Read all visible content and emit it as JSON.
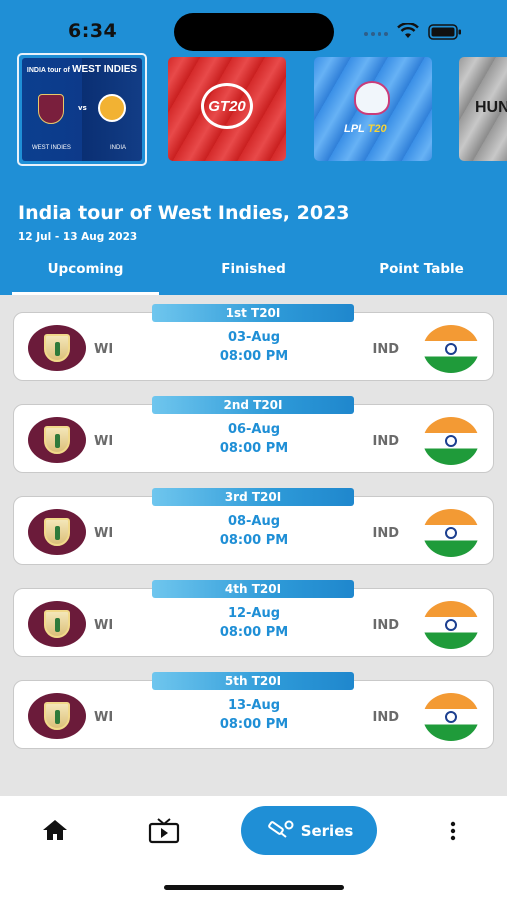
{
  "status_bar": {
    "time": "6:34"
  },
  "banners": [
    {
      "id": "wi-tour",
      "title_small": "INDIA tour of",
      "title_big": "WEST INDIES",
      "vs": "vs",
      "left_label": "WEST INDIES",
      "right_label": "INDIA",
      "selected": true
    },
    {
      "id": "gt20",
      "logo_text": "GT20"
    },
    {
      "id": "lpl",
      "logo_text": "LPL",
      "logo_suffix": "T20"
    },
    {
      "id": "hun",
      "logo_text": "HUN"
    }
  ],
  "series": {
    "title": "India tour of West Indies, 2023",
    "dates": "12 Jul - 13 Aug 2023"
  },
  "tabs": [
    {
      "label": "Upcoming",
      "active": true
    },
    {
      "label": "Finished",
      "active": false
    },
    {
      "label": "Point Table",
      "active": false
    }
  ],
  "matches": [
    {
      "label": "1st T20I",
      "home": "WI",
      "away": "IND",
      "date": "03-Aug",
      "time": "08:00 PM"
    },
    {
      "label": "2nd T20I",
      "home": "WI",
      "away": "IND",
      "date": "06-Aug",
      "time": "08:00 PM"
    },
    {
      "label": "3rd T20I",
      "home": "WI",
      "away": "IND",
      "date": "08-Aug",
      "time": "08:00 PM"
    },
    {
      "label": "4th T20I",
      "home": "WI",
      "away": "IND",
      "date": "12-Aug",
      "time": "08:00 PM"
    },
    {
      "label": "5th T20I",
      "home": "WI",
      "away": "IND",
      "date": "13-Aug",
      "time": "08:00 PM"
    }
  ],
  "bottom_nav": {
    "items": [
      {
        "icon": "home-icon"
      },
      {
        "icon": "tv-icon"
      },
      {
        "icon": "cricket-bat-icon",
        "label": "Series",
        "active": true
      },
      {
        "icon": "more-vertical-icon"
      }
    ]
  },
  "colors": {
    "primary": "#1f8fd6",
    "background": "#e4e4e4",
    "text_muted": "#6a6a6a"
  }
}
